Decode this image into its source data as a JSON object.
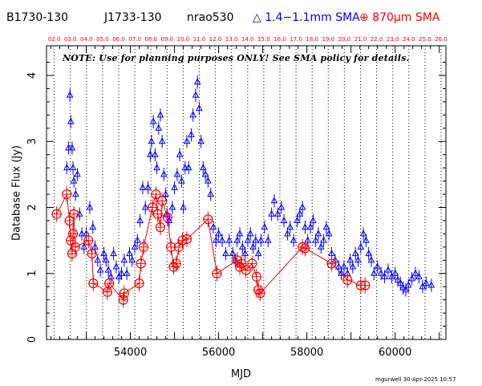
{
  "header": {
    "source1": "B1730-130",
    "source2": "J1733-130",
    "source3": "nrao530",
    "legend_blue": "△ 1.4−1.1mm SMA",
    "legend_red": "⊕ 870μm SMA"
  },
  "note": "NOTE: Use for planning purposes ONLY! See SMA policy for details.",
  "credit": "mgurwell 30-Apr-2025 10:57",
  "colors": {
    "band1": "#0000ff",
    "band2": "#ff0000",
    "axes": "#000000"
  },
  "chart_data": {
    "type": "scatter",
    "xlabel": "MJD",
    "ylabel": "Database Flux (Jy)",
    "xlim": [
      52100,
      61150
    ],
    "ylim": [
      0,
      4.45
    ],
    "xticks": [
      54000,
      56000,
      58000,
      60000
    ],
    "xtick_labels": [
      "54000",
      "56000",
      "58000",
      "60000"
    ],
    "yticks": [
      0,
      1,
      2,
      3,
      4
    ],
    "year_ticks": [
      {
        "label": "02.0",
        "mjd": 52275
      },
      {
        "label": "03.0",
        "mjd": 52640
      },
      {
        "label": "04.0",
        "mjd": 53005
      },
      {
        "label": "05.0",
        "mjd": 53371
      },
      {
        "label": "06.0",
        "mjd": 53736
      },
      {
        "label": "07.0",
        "mjd": 54101
      },
      {
        "label": "08.0",
        "mjd": 54466
      },
      {
        "label": "09.0",
        "mjd": 54832
      },
      {
        "label": "10.0",
        "mjd": 55197
      },
      {
        "label": "11.0",
        "mjd": 55562
      },
      {
        "label": "12.0",
        "mjd": 55927
      },
      {
        "label": "13.0",
        "mjd": 56293
      },
      {
        "label": "14.0",
        "mjd": 56658
      },
      {
        "label": "15.0",
        "mjd": 57023
      },
      {
        "label": "16.0",
        "mjd": 57388
      },
      {
        "label": "17.0",
        "mjd": 57754
      },
      {
        "label": "18.0",
        "mjd": 58119
      },
      {
        "label": "19.0",
        "mjd": 58484
      },
      {
        "label": "20.0",
        "mjd": 58849
      },
      {
        "label": "21.0",
        "mjd": 59215
      },
      {
        "label": "22.0",
        "mjd": 59580
      },
      {
        "label": "23.0",
        "mjd": 59945
      },
      {
        "label": "24.0",
        "mjd": 60310
      },
      {
        "label": "25.0",
        "mjd": 60676
      },
      {
        "label": "26.0",
        "mjd": 61041
      }
    ],
    "series": [
      {
        "name": "1.4−1.1mm SMA",
        "marker": "triangle",
        "points": [
          [
            52560,
            2.6
          ],
          [
            52600,
            2.9
          ],
          [
            52630,
            3.7
          ],
          [
            52650,
            3.3
          ],
          [
            52680,
            2.9
          ],
          [
            52700,
            2.6
          ],
          [
            52720,
            2.4
          ],
          [
            52760,
            2.2
          ],
          [
            52800,
            2.5
          ],
          [
            52850,
            1.9
          ],
          [
            52900,
            1.6
          ],
          [
            52950,
            1.4
          ],
          [
            53000,
            1.6
          ],
          [
            53080,
            2.0
          ],
          [
            53150,
            1.7
          ],
          [
            53200,
            1.4
          ],
          [
            53260,
            1.2
          ],
          [
            53320,
            1.05
          ],
          [
            53400,
            1.3
          ],
          [
            53450,
            1.2
          ],
          [
            53500,
            1.05
          ],
          [
            53560,
            0.95
          ],
          [
            53620,
            1.3
          ],
          [
            53680,
            1.1
          ],
          [
            53740,
            0.95
          ],
          [
            53800,
            1.0
          ],
          [
            53860,
            1.2
          ],
          [
            53920,
            1.0
          ],
          [
            53980,
            1.3
          ],
          [
            54040,
            1.2
          ],
          [
            54100,
            1.4
          ],
          [
            54160,
            1.5
          ],
          [
            54220,
            1.8
          ],
          [
            54280,
            2.3
          ],
          [
            54340,
            2.0
          ],
          [
            54400,
            2.3
          ],
          [
            54450,
            2.8
          ],
          [
            54480,
            3.0
          ],
          [
            54520,
            3.3
          ],
          [
            54560,
            2.8
          ],
          [
            54600,
            2.6
          ],
          [
            54640,
            3.2
          ],
          [
            54680,
            3.4
          ],
          [
            54720,
            3.0
          ],
          [
            54760,
            2.5
          ],
          [
            54800,
            2.2
          ],
          [
            54830,
            1.9
          ],
          [
            54880,
            1.8
          ],
          [
            54950,
            2.0
          ],
          [
            55000,
            2.3
          ],
          [
            55060,
            2.5
          ],
          [
            55120,
            2.8
          ],
          [
            55160,
            2.4
          ],
          [
            55200,
            2.0
          ],
          [
            55240,
            2.6
          ],
          [
            55280,
            3.0
          ],
          [
            55320,
            2.6
          ],
          [
            55380,
            3.1
          ],
          [
            55420,
            3.4
          ],
          [
            55480,
            3.7
          ],
          [
            55520,
            3.9
          ],
          [
            55560,
            3.5
          ],
          [
            55600,
            3.0
          ],
          [
            55650,
            2.6
          ],
          [
            55700,
            2.5
          ],
          [
            55760,
            2.4
          ],
          [
            55820,
            2.2
          ],
          [
            55880,
            1.7
          ],
          [
            55940,
            1.5
          ],
          [
            56000,
            1.6
          ],
          [
            56080,
            1.5
          ],
          [
            56160,
            1.3
          ],
          [
            56240,
            1.5
          ],
          [
            56320,
            1.3
          ],
          [
            56380,
            1.2
          ],
          [
            56420,
            1.5
          ],
          [
            56480,
            1.6
          ],
          [
            56540,
            1.4
          ],
          [
            56600,
            1.3
          ],
          [
            56660,
            1.5
          ],
          [
            56720,
            1.6
          ],
          [
            56780,
            1.4
          ],
          [
            56840,
            1.5
          ],
          [
            56900,
            1.3
          ],
          [
            56960,
            1.5
          ],
          [
            57040,
            1.7
          ],
          [
            57120,
            1.5
          ],
          [
            57200,
            1.9
          ],
          [
            57260,
            2.1
          ],
          [
            57340,
            1.9
          ],
          [
            57420,
            2.0
          ],
          [
            57480,
            1.8
          ],
          [
            57560,
            1.6
          ],
          [
            57620,
            1.7
          ],
          [
            57700,
            1.5
          ],
          [
            57780,
            1.8
          ],
          [
            57840,
            1.9
          ],
          [
            57900,
            2.0
          ],
          [
            57960,
            1.7
          ],
          [
            58020,
            1.5
          ],
          [
            58080,
            1.7
          ],
          [
            58140,
            1.8
          ],
          [
            58200,
            1.5
          ],
          [
            58260,
            1.6
          ],
          [
            58320,
            1.4
          ],
          [
            58380,
            1.5
          ],
          [
            58440,
            1.7
          ],
          [
            58500,
            1.6
          ],
          [
            58560,
            1.3
          ],
          [
            58640,
            1.2
          ],
          [
            58720,
            1.1
          ],
          [
            58780,
            1.0
          ],
          [
            58840,
            1.1
          ],
          [
            58920,
            1.0
          ],
          [
            58980,
            1.2
          ],
          [
            59040,
            1.1
          ],
          [
            59100,
            1.3
          ],
          [
            59160,
            1.2
          ],
          [
            59220,
            1.4
          ],
          [
            59280,
            1.6
          ],
          [
            59340,
            1.5
          ],
          [
            59400,
            1.3
          ],
          [
            59460,
            1.2
          ],
          [
            59520,
            1.0
          ],
          [
            59600,
            1.1
          ],
          [
            59680,
            1.0
          ],
          [
            59760,
            0.95
          ],
          [
            59840,
            1.05
          ],
          [
            59920,
            0.95
          ],
          [
            60000,
            1.0
          ],
          [
            60060,
            0.9
          ],
          [
            60120,
            0.85
          ],
          [
            60180,
            0.78
          ],
          [
            60240,
            0.75
          ],
          [
            60300,
            0.82
          ],
          [
            60380,
            0.92
          ],
          [
            60460,
            1.0
          ],
          [
            60540,
            0.95
          ],
          [
            60620,
            0.8
          ],
          [
            60700,
            0.85
          ],
          [
            60820,
            0.82
          ]
        ]
      },
      {
        "name": "870μm SMA",
        "marker": "circle-plus",
        "connected": true,
        "points": [
          [
            52330,
            1.9
          ],
          [
            52560,
            2.2
          ],
          [
            52620,
            1.8
          ],
          [
            52650,
            1.5
          ],
          [
            52680,
            1.3
          ],
          [
            52700,
            1.6
          ],
          [
            52720,
            1.9
          ],
          [
            52750,
            1.4
          ],
          [
            53050,
            1.5
          ],
          [
            53130,
            1.3
          ],
          [
            53160,
            0.85
          ],
          [
            53480,
            0.72
          ],
          [
            53520,
            0.85
          ],
          [
            53840,
            0.6
          ],
          [
            53860,
            0.7
          ],
          [
            54200,
            0.85
          ],
          [
            54240,
            1.15
          ],
          [
            54300,
            1.4
          ],
          [
            54500,
            2.0
          ],
          [
            54580,
            2.2
          ],
          [
            54620,
            1.9
          ],
          [
            54680,
            1.7
          ],
          [
            54720,
            2.1
          ],
          [
            54840,
            1.85
          ],
          [
            54920,
            1.4
          ],
          [
            54980,
            1.1
          ],
          [
            55040,
            1.15
          ],
          [
            55100,
            1.4
          ],
          [
            55180,
            1.5
          ],
          [
            55280,
            1.52
          ],
          [
            55760,
            1.82
          ],
          [
            55960,
            1.0
          ],
          [
            56420,
            1.2
          ],
          [
            56480,
            1.1
          ],
          [
            56520,
            1.15
          ],
          [
            56620,
            1.05
          ],
          [
            56760,
            1.15
          ],
          [
            56860,
            0.95
          ],
          [
            56900,
            0.75
          ],
          [
            56940,
            0.7
          ],
          [
            57900,
            1.4
          ],
          [
            57960,
            1.38
          ],
          [
            58560,
            1.15
          ],
          [
            58920,
            0.9
          ],
          [
            59220,
            0.82
          ],
          [
            59320,
            0.82
          ]
        ]
      }
    ]
  }
}
